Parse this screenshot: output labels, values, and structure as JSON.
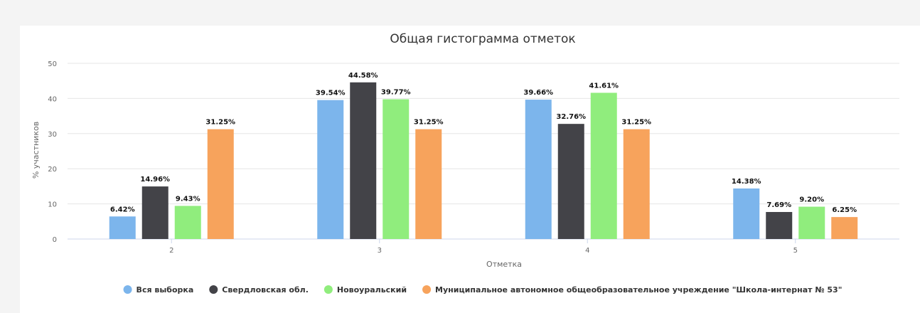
{
  "chart_data": {
    "type": "bar",
    "title": "Общая гистограмма отметок",
    "xlabel": "Отметка",
    "ylabel": "% участников",
    "categories": [
      "2",
      "3",
      "4",
      "5"
    ],
    "yticks": [
      "0",
      "10",
      "20",
      "30",
      "40",
      "50"
    ],
    "ylim": [
      0,
      50
    ],
    "grid": true,
    "legend_position": "bottom",
    "series": [
      {
        "name": "Вся выборка",
        "color": "#7cb5ec",
        "values": [
          6.42,
          39.54,
          39.66,
          14.38
        ],
        "labels": [
          "6.42%",
          "39.54%",
          "39.66%",
          "14.38%"
        ]
      },
      {
        "name": "Свердловская обл.",
        "color": "#434348",
        "values": [
          14.96,
          44.58,
          32.76,
          7.69
        ],
        "labels": [
          "14.96%",
          "44.58%",
          "32.76%",
          "7.69%"
        ]
      },
      {
        "name": "Новоуральский",
        "color": "#90ed7d",
        "values": [
          9.43,
          39.77,
          41.61,
          9.2
        ],
        "labels": [
          "9.43%",
          "39.77%",
          "41.61%",
          "9.20%"
        ]
      },
      {
        "name": "Муниципальное автономное общеобразовательное учреждение \"Школа-интернат № 53\"",
        "color": "#f7a35c",
        "values": [
          31.25,
          31.25,
          31.25,
          6.25
        ],
        "labels": [
          "31.25%",
          "31.25%",
          "31.25%",
          "6.25%"
        ]
      }
    ]
  }
}
